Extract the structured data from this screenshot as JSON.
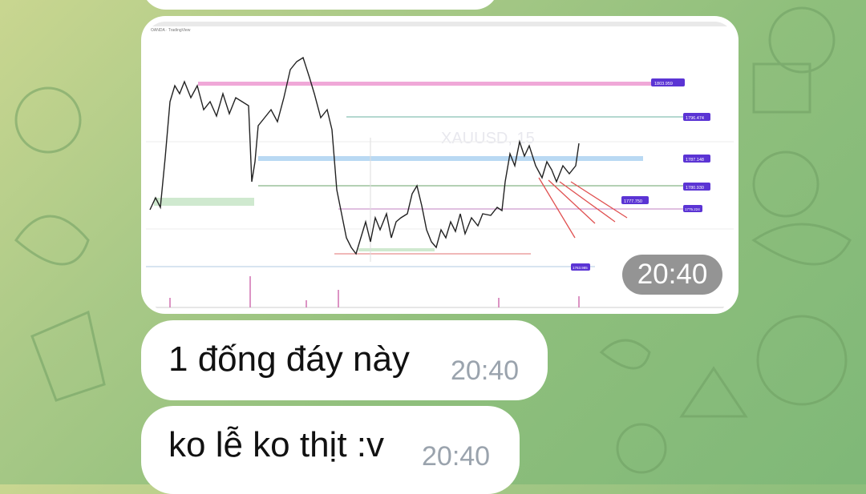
{
  "chat": {
    "messages": [
      {
        "type": "photo",
        "time": "20:40",
        "chart": {
          "header_text": "OANDA · TradingView",
          "watermark": "XAUUSD, 15",
          "price_labels": [
            "1803.959",
            "1796.474",
            "1787.148",
            "1780.930",
            "1777.750",
            "1775.224",
            "1763.985"
          ]
        }
      },
      {
        "type": "text",
        "text": "1 đống đáy này",
        "time": "20:40"
      },
      {
        "type": "text",
        "text": "ko lễ ko thịt :v",
        "time": "20:40"
      }
    ]
  },
  "colors": {
    "bubble": "#ffffff",
    "time_text": "#9aa3ad",
    "label_purple": "#5b34d4",
    "trend_red": "#e05050",
    "pink_zone": "#f0a8d8",
    "blue_zone": "#a8d0f0"
  }
}
